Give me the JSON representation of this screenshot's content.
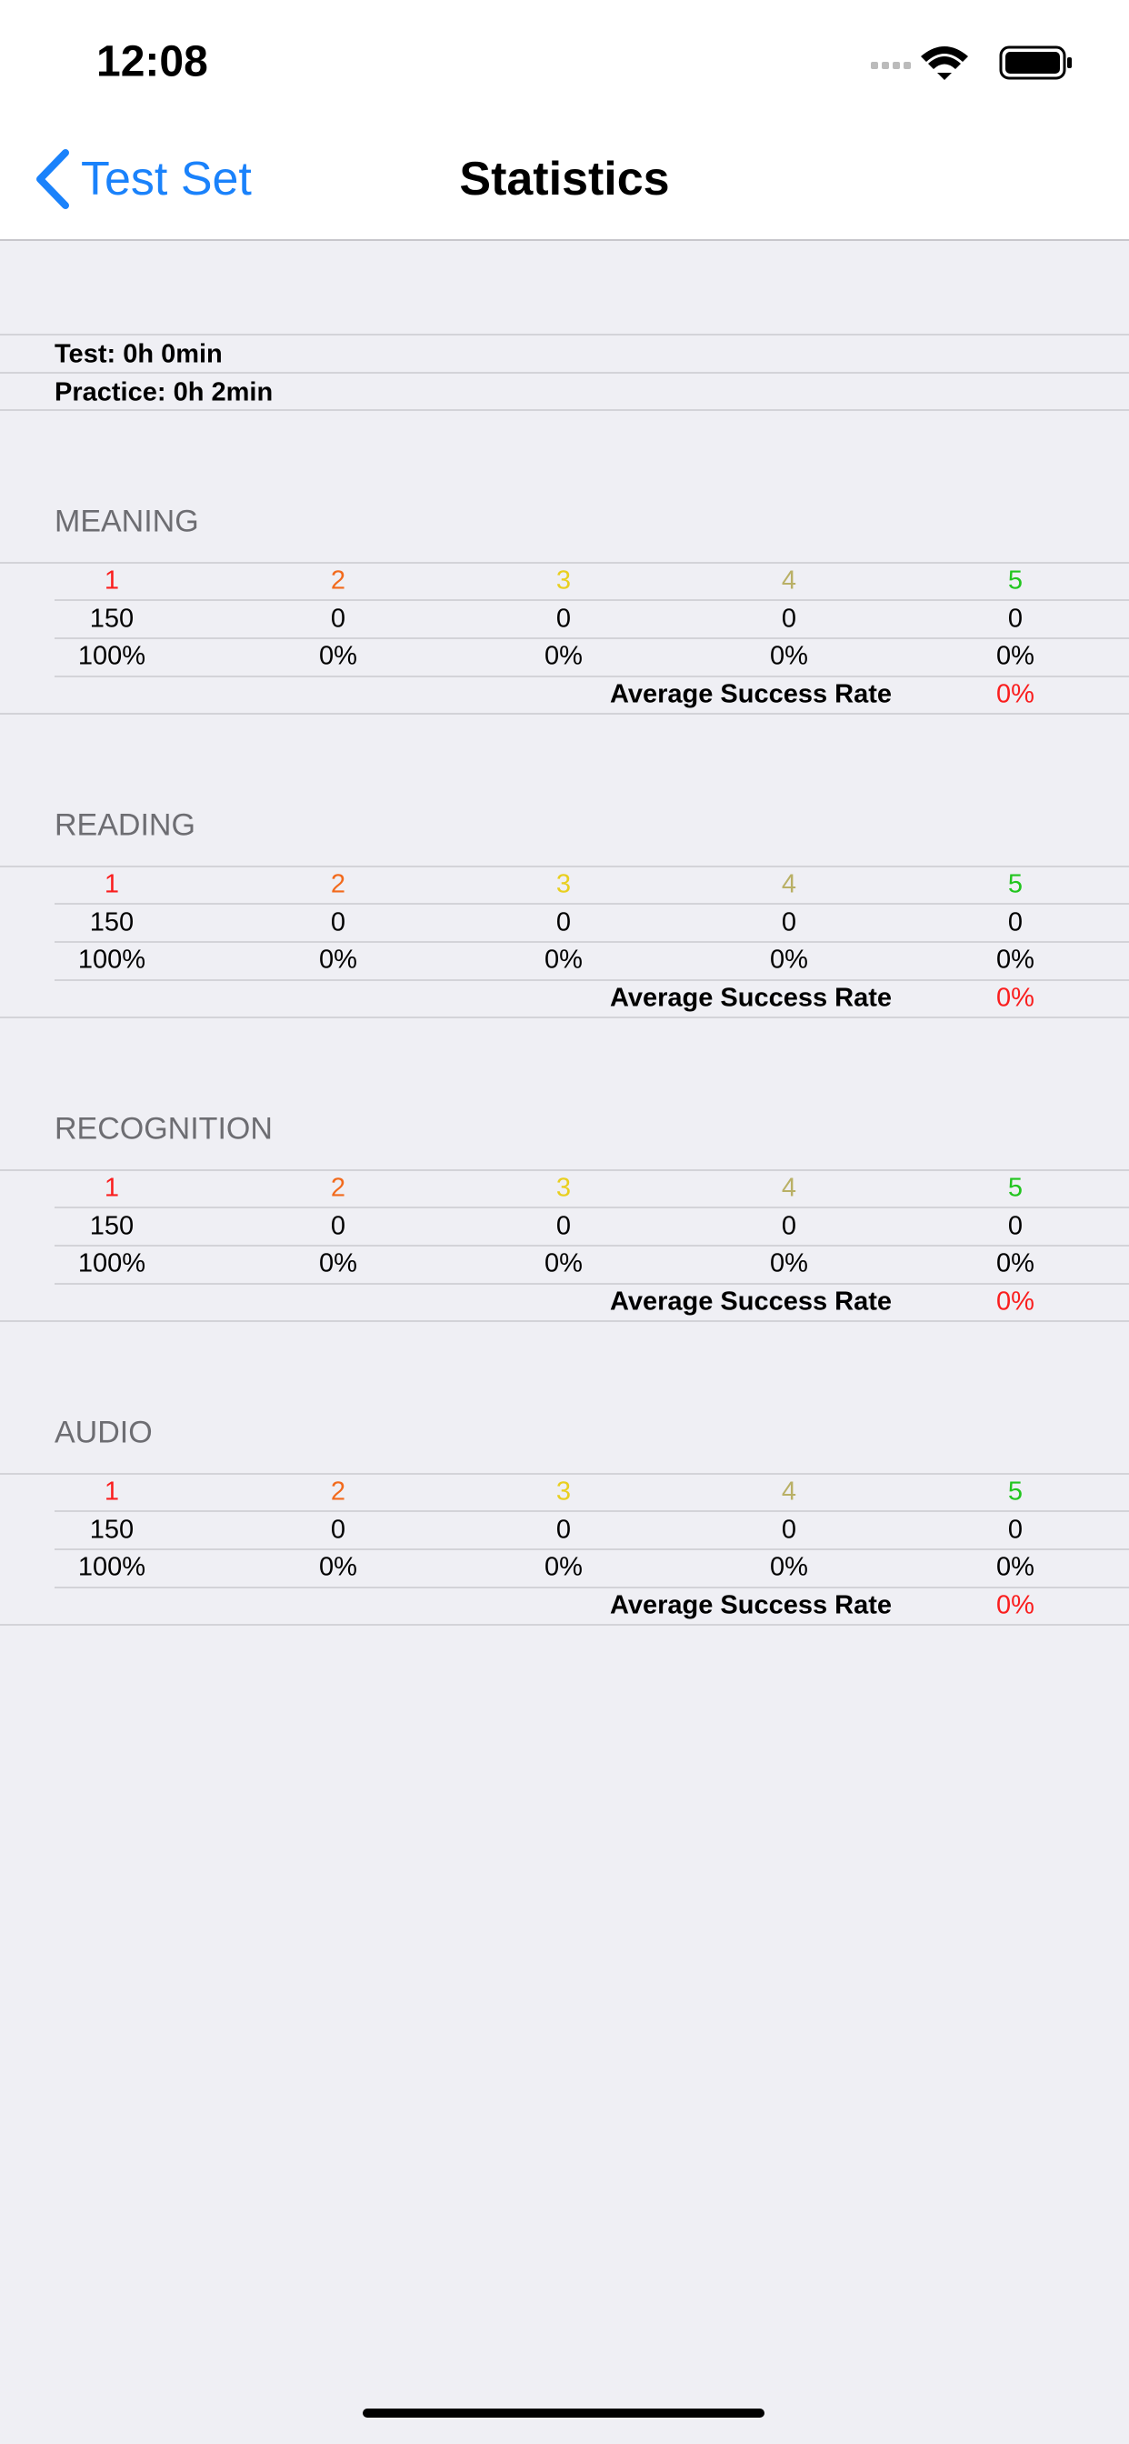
{
  "status": {
    "time": "12:08"
  },
  "nav": {
    "back": "Test Set",
    "title": "Statistics"
  },
  "times": [
    "Test: 0h 0min",
    "Practice: 0h 2min"
  ],
  "level_colors": [
    "#fa1e1e",
    "#f26a1c",
    "#e9cf1f",
    "#b9b066",
    "#22c51f"
  ],
  "sections": [
    {
      "title": "MEANING",
      "levels": [
        "1",
        "2",
        "3",
        "4",
        "5"
      ],
      "counts": [
        "150",
        "0",
        "0",
        "0",
        "0"
      ],
      "rates": [
        "100%",
        "0%",
        "0%",
        "0%",
        "0%"
      ],
      "average_label": "Average Success Rate",
      "average": "0%"
    },
    {
      "title": "READING",
      "levels": [
        "1",
        "2",
        "3",
        "4",
        "5"
      ],
      "counts": [
        "150",
        "0",
        "0",
        "0",
        "0"
      ],
      "rates": [
        "100%",
        "0%",
        "0%",
        "0%",
        "0%"
      ],
      "average_label": "Average Success Rate",
      "average": "0%"
    },
    {
      "title": "RECOGNITION",
      "levels": [
        "1",
        "2",
        "3",
        "4",
        "5"
      ],
      "counts": [
        "150",
        "0",
        "0",
        "0",
        "0"
      ],
      "rates": [
        "100%",
        "0%",
        "0%",
        "0%",
        "0%"
      ],
      "average_label": "Average Success Rate",
      "average": "0%"
    },
    {
      "title": "AUDIO",
      "levels": [
        "1",
        "2",
        "3",
        "4",
        "5"
      ],
      "counts": [
        "150",
        "0",
        "0",
        "0",
        "0"
      ],
      "rates": [
        "100%",
        "0%",
        "0%",
        "0%",
        "0%"
      ],
      "average_label": "Average Success Rate",
      "average": "0%"
    }
  ]
}
